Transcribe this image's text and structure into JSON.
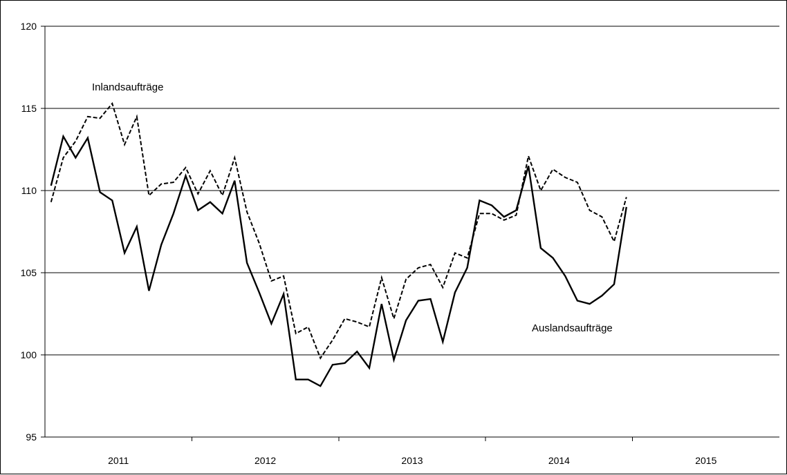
{
  "chart_data": {
    "type": "line",
    "title": "",
    "xlabel": "",
    "ylabel": "",
    "ylim": [
      95,
      120
    ],
    "yticks": [
      95,
      100,
      105,
      110,
      115,
      120
    ],
    "grid": "horizontal",
    "legend": "none",
    "years": [
      "2011",
      "2012",
      "2013",
      "2014",
      "2015"
    ],
    "x_range_months": [
      "2011-01",
      "2015-12"
    ],
    "x": [
      "2011-01",
      "2011-02",
      "2011-03",
      "2011-04",
      "2011-05",
      "2011-06",
      "2011-07",
      "2011-08",
      "2011-09",
      "2011-10",
      "2011-11",
      "2011-12",
      "2012-01",
      "2012-02",
      "2012-03",
      "2012-04",
      "2012-05",
      "2012-06",
      "2012-07",
      "2012-08",
      "2012-09",
      "2012-10",
      "2012-11",
      "2012-12",
      "2013-01",
      "2013-02",
      "2013-03",
      "2013-04",
      "2013-05",
      "2013-06",
      "2013-07",
      "2013-08",
      "2013-09",
      "2013-10",
      "2013-11",
      "2013-12",
      "2014-01",
      "2014-02",
      "2014-03",
      "2014-04",
      "2014-05",
      "2014-06",
      "2014-07",
      "2014-08",
      "2014-09",
      "2014-10",
      "2014-11",
      "2014-12"
    ],
    "series": [
      {
        "name": "Inlandsaufträge",
        "style": "dashed",
        "color": "#000000",
        "values": [
          109.3,
          112.0,
          113.0,
          114.5,
          114.4,
          115.3,
          112.8,
          114.5,
          109.7,
          110.4,
          110.5,
          111.4,
          109.8,
          111.2,
          109.7,
          112.0,
          108.7,
          106.8,
          104.5,
          104.8,
          101.3,
          101.7,
          99.8,
          100.9,
          102.2,
          102.0,
          101.7,
          104.7,
          102.2,
          104.6,
          105.3,
          105.5,
          104.1,
          106.2,
          105.9,
          108.6,
          108.6,
          108.2,
          108.5,
          112.1,
          110.0,
          111.3,
          110.8,
          110.5,
          108.8,
          108.4,
          106.9,
          109.6
        ]
      },
      {
        "name": "Auslandsaufträge",
        "style": "solid",
        "color": "#000000",
        "values": [
          110.3,
          113.3,
          112.0,
          113.2,
          109.9,
          109.4,
          106.2,
          107.8,
          103.9,
          106.7,
          108.6,
          110.9,
          108.8,
          109.3,
          108.6,
          110.6,
          105.6,
          103.8,
          101.9,
          103.7,
          98.5,
          98.5,
          98.1,
          99.4,
          99.5,
          100.2,
          99.2,
          103.1,
          99.7,
          102.1,
          103.3,
          103.4,
          100.8,
          103.8,
          105.3,
          109.4,
          109.1,
          108.4,
          108.8,
          111.5,
          106.5,
          105.9,
          104.8,
          103.3,
          103.1,
          103.6,
          104.3,
          109.0
        ]
      }
    ],
    "annotations": [
      {
        "text": "Inlandsaufträge",
        "series": "Inlandsaufträge"
      },
      {
        "text": "Auslandsaufträge",
        "series": "Auslandsaufträge"
      }
    ]
  }
}
